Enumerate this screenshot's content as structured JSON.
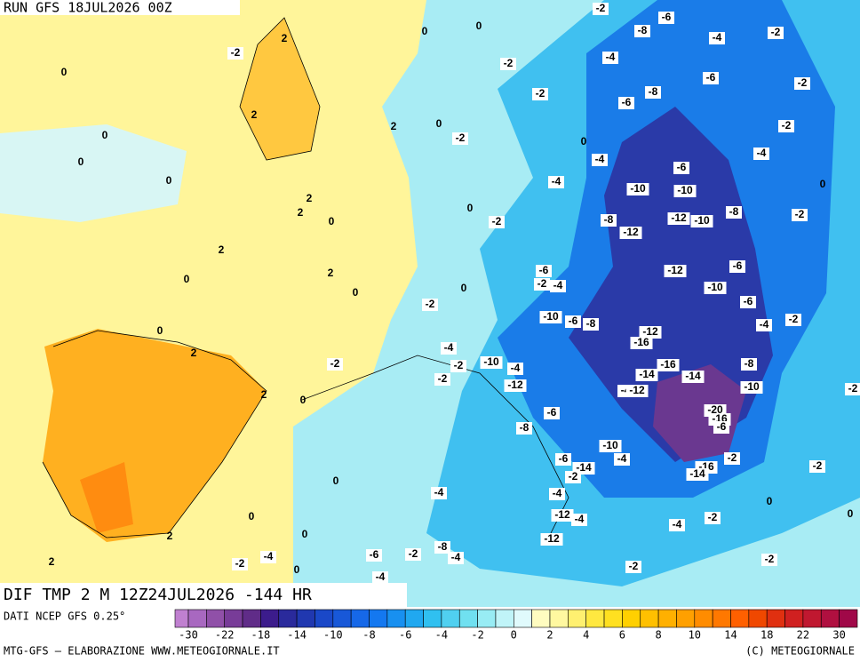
{
  "header": {
    "run": "RUN GFS 18JUL2026 00Z",
    "title": "DIF TMP 2 M 12Z24JUL2026 -144 HR",
    "source": "DATI NCEP GFS 0.25°",
    "credit": "MTG-GFS – ELABORAZIONE WWW.METEOGIORNALE.IT",
    "copyright": "(C) METEOGIORNALE"
  },
  "map": {
    "labels": [
      0,
      2,
      -2,
      0,
      2,
      0,
      0,
      0,
      2,
      2,
      0,
      2,
      0,
      2,
      0,
      2,
      0,
      0,
      0,
      -2,
      -2,
      -2,
      0,
      -2,
      0,
      -2,
      -6,
      -8,
      -4,
      -2,
      -4,
      -6,
      -2,
      -8,
      -6,
      -2,
      -4,
      -4,
      -6,
      0,
      -4,
      -10,
      -10,
      -8,
      -12,
      -10,
      -8,
      -2,
      -12,
      -6,
      -12,
      -10,
      -6,
      -2,
      -4,
      -2,
      0,
      -6,
      -2,
      -4,
      -10,
      -6,
      -8,
      -12,
      -16,
      0,
      2,
      -2,
      -4,
      -2,
      -10,
      -4,
      -2,
      -12,
      -16,
      -14,
      -8,
      -14,
      -4,
      -12,
      -10,
      2,
      0,
      -2,
      -6,
      -20,
      -16,
      -6,
      -8,
      -10,
      -4,
      -6,
      -14,
      -2,
      -2,
      -16,
      -14,
      -2,
      0,
      -4,
      -4,
      0,
      0,
      0,
      -12,
      -4,
      -2,
      -4,
      2,
      0,
      -12,
      -8,
      -2,
      -6,
      -4,
      -4,
      -2,
      2,
      -2,
      -2,
      0,
      -4
    ]
  },
  "colorbar": {
    "colors": [
      "#c080d0",
      "#a868c0",
      "#9050a8",
      "#783c98",
      "#602c88",
      "#3c1c8c",
      "#2a2a9c",
      "#2038b0",
      "#1a48c8",
      "#1858d8",
      "#1668e8",
      "#1478f0",
      "#1890f0",
      "#20a8f0",
      "#30c0f0",
      "#50d0f0",
      "#70e0f0",
      "#98ecf4",
      "#c0f4f8",
      "#e0fafc",
      "#fffcc0",
      "#fff8a0",
      "#fff070",
      "#ffe840",
      "#ffe020",
      "#ffd000",
      "#ffc000",
      "#ffb000",
      "#ffa000",
      "#ff8c00",
      "#ff7800",
      "#ff6000",
      "#f04800",
      "#e03010",
      "#d02020",
      "#c01830",
      "#b01040",
      "#a00848"
    ],
    "ticks": [
      -30,
      -22,
      -18,
      -14,
      -10,
      -8,
      -6,
      -4,
      -2,
      0,
      2,
      4,
      6,
      8,
      10,
      14,
      18,
      22,
      30
    ]
  }
}
